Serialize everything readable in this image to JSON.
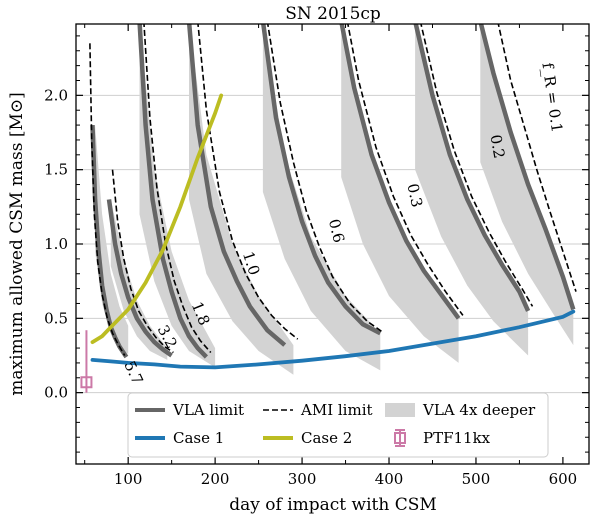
{
  "chart_data": {
    "type": "line",
    "title": "SN 2015cp",
    "xlabel": "day of impact with CSM",
    "ylabel": "maximum allowed CSM mass [M⊙]",
    "xlim": [
      40,
      630
    ],
    "ylim": [
      -0.48,
      2.48
    ],
    "x_ticks": [
      100,
      200,
      300,
      400,
      500,
      600
    ],
    "x_tick_labels": [
      "100",
      "200",
      "300",
      "400",
      "500",
      "600"
    ],
    "y_ticks": [
      0.0,
      0.5,
      1.0,
      1.5,
      2.0
    ],
    "y_tick_labels": [
      "0.0",
      "0.5",
      "1.0",
      "1.5",
      "2.0"
    ],
    "grid": "horizontal",
    "legend_position": "bottom-center",
    "legend": [
      {
        "label": "VLA limit",
        "style": "thick-gray-line",
        "color": "#666666"
      },
      {
        "label": "AMI limit",
        "style": "dashed-black-line",
        "color": "#000000"
      },
      {
        "label": "VLA 4x deeper",
        "style": "gray-patch",
        "color": "#d3d3d3"
      },
      {
        "label": "Case 1",
        "style": "thick-line",
        "color": "#1f77b4"
      },
      {
        "label": "Case 2",
        "style": "thick-line",
        "color": "#bcbd22"
      },
      {
        "label": "PTF11kx",
        "style": "errorbar-square",
        "color": "#cc79a7"
      }
    ],
    "curve_labels": [
      "5.7",
      "3.2",
      "1.8",
      "1.0",
      "0.6",
      "0.3",
      "0.2",
      "f_R = 0.1"
    ],
    "vla_limit": [
      {
        "label": "5.7",
        "x": [
          59,
          62,
          66,
          70,
          75,
          80,
          85,
          90,
          98
        ],
        "y": [
          1.8,
          1.3,
          0.95,
          0.72,
          0.56,
          0.44,
          0.37,
          0.31,
          0.24
        ]
      },
      {
        "label": "3.2",
        "x": [
          78,
          85,
          92,
          100,
          110,
          120,
          130,
          140,
          150
        ],
        "y": [
          1.3,
          1.0,
          0.8,
          0.64,
          0.5,
          0.41,
          0.34,
          0.29,
          0.25
        ]
      },
      {
        "label": "1.8",
        "x": [
          113,
          120,
          128,
          140,
          150,
          160,
          170,
          180,
          190
        ],
        "y": [
          2.5,
          1.8,
          1.3,
          0.9,
          0.68,
          0.5,
          0.38,
          0.3,
          0.24
        ]
      },
      {
        "label": "1.0",
        "x": [
          170,
          180,
          195,
          210,
          225,
          240,
          260,
          280
        ],
        "y": [
          2.5,
          1.8,
          1.25,
          0.95,
          0.75,
          0.58,
          0.42,
          0.32
        ]
      },
      {
        "label": "0.6",
        "x": [
          255,
          270,
          285,
          300,
          315,
          330,
          350,
          370,
          390
        ],
        "y": [
          2.5,
          1.85,
          1.45,
          1.15,
          0.92,
          0.74,
          0.58,
          0.46,
          0.4
        ]
      },
      {
        "label": "0.3",
        "x": [
          345,
          360,
          380,
          400,
          420,
          440,
          460,
          480
        ],
        "y": [
          2.5,
          2.05,
          1.6,
          1.28,
          1.02,
          0.82,
          0.66,
          0.5
        ]
      },
      {
        "label": "0.2",
        "x": [
          430,
          450,
          470,
          490,
          510,
          530,
          550,
          560
        ],
        "y": [
          2.5,
          2.0,
          1.6,
          1.3,
          1.06,
          0.86,
          0.68,
          0.55
        ]
      },
      {
        "label": "0.1",
        "x": [
          505,
          520,
          540,
          560,
          580,
          600,
          612
        ],
        "y": [
          2.5,
          2.15,
          1.75,
          1.4,
          1.1,
          0.78,
          0.56
        ]
      }
    ],
    "ami_limit": [
      {
        "label": "5.7",
        "x": [
          56,
          58,
          61,
          65,
          70,
          76,
          82,
          88,
          96
        ],
        "y": [
          2.35,
          1.7,
          1.2,
          0.88,
          0.66,
          0.5,
          0.4,
          0.33,
          0.25
        ]
      },
      {
        "label": "3.2",
        "x": [
          82,
          88,
          95,
          103,
          112,
          122,
          132,
          142,
          152
        ],
        "y": [
          1.5,
          1.15,
          0.9,
          0.7,
          0.55,
          0.45,
          0.37,
          0.31,
          0.27
        ]
      },
      {
        "label": "1.8",
        "x": [
          118,
          125,
          133,
          143,
          153,
          163,
          173,
          183,
          195
        ],
        "y": [
          2.5,
          1.85,
          1.38,
          1.0,
          0.75,
          0.58,
          0.44,
          0.35,
          0.27
        ]
      },
      {
        "label": "1.0",
        "x": [
          180,
          190,
          205,
          220,
          235,
          250,
          265,
          280,
          295
        ],
        "y": [
          2.5,
          1.9,
          1.35,
          1.02,
          0.8,
          0.64,
          0.52,
          0.43,
          0.36
        ]
      },
      {
        "label": "0.6",
        "x": [
          260,
          275,
          290,
          305,
          320,
          335,
          355,
          375,
          392
        ],
        "y": [
          2.5,
          1.95,
          1.55,
          1.22,
          0.98,
          0.78,
          0.6,
          0.48,
          0.41
        ]
      },
      {
        "label": "0.3",
        "x": [
          352,
          365,
          385,
          405,
          425,
          445,
          465,
          485
        ],
        "y": [
          2.5,
          2.1,
          1.65,
          1.32,
          1.06,
          0.86,
          0.68,
          0.52
        ]
      },
      {
        "label": "0.2",
        "x": [
          436,
          455,
          475,
          495,
          515,
          535,
          553,
          565
        ],
        "y": [
          2.5,
          2.02,
          1.63,
          1.32,
          1.08,
          0.87,
          0.7,
          0.58
        ]
      },
      {
        "label": "0.1",
        "x": [
          525,
          540,
          555,
          570,
          585,
          600,
          615
        ],
        "y": [
          2.5,
          2.1,
          1.8,
          1.5,
          1.22,
          0.95,
          0.68
        ]
      }
    ],
    "vla_4x_deeper": [
      {
        "x": [
          62,
          70,
          80,
          90,
          100
        ],
        "upper": [
          1.8,
          1.2,
          0.8,
          0.58,
          0.45
        ],
        "lower": [
          0.95,
          0.6,
          0.4,
          0.3,
          0.26
        ],
        "xmax": 100
      },
      {
        "x": [
          80,
          95,
          110,
          125,
          145
        ],
        "upper": [
          1.3,
          0.9,
          0.62,
          0.45,
          0.3
        ],
        "lower": [
          0.85,
          0.55,
          0.38,
          0.28,
          0.22
        ],
        "xmax": 145
      },
      {
        "x": [
          113,
          130,
          150,
          170,
          200
        ],
        "upper": [
          2.5,
          1.5,
          0.95,
          0.62,
          0.3
        ],
        "lower": [
          1.2,
          0.75,
          0.45,
          0.28,
          0.17
        ],
        "xmax": 200
      },
      {
        "x": [
          170,
          190,
          220,
          250,
          290
        ],
        "upper": [
          2.5,
          1.6,
          1.0,
          0.65,
          0.32
        ],
        "lower": [
          1.3,
          0.8,
          0.48,
          0.28,
          0.12
        ],
        "xmax": 290
      },
      {
        "x": [
          255,
          280,
          310,
          350,
          390
        ],
        "upper": [
          2.5,
          1.6,
          1.05,
          0.65,
          0.4
        ],
        "lower": [
          1.35,
          0.9,
          0.55,
          0.28,
          0.15
        ],
        "xmax": 390
      },
      {
        "x": [
          345,
          370,
          400,
          440,
          480
        ],
        "upper": [
          2.5,
          1.8,
          1.28,
          0.82,
          0.5
        ],
        "lower": [
          1.45,
          1.0,
          0.65,
          0.38,
          0.2
        ],
        "xmax": 480
      },
      {
        "x": [
          430,
          460,
          490,
          520,
          560
        ],
        "upper": [
          2.5,
          1.8,
          1.3,
          0.95,
          0.55
        ],
        "lower": [
          1.5,
          1.05,
          0.72,
          0.48,
          0.25
        ],
        "xmax": 560
      },
      {
        "x": [
          505,
          530,
          560,
          590,
          612
        ],
        "upper": [
          2.5,
          1.95,
          1.4,
          0.95,
          0.56
        ],
        "lower": [
          1.55,
          1.15,
          0.8,
          0.52,
          0.32
        ],
        "xmax": 612
      }
    ],
    "series": [
      {
        "name": "Case 1",
        "color": "#1f77b4",
        "x": [
          59,
          80,
          100,
          130,
          160,
          200,
          250,
          300,
          350,
          400,
          450,
          500,
          550,
          600,
          612
        ],
        "y": [
          0.22,
          0.21,
          0.2,
          0.19,
          0.175,
          0.17,
          0.19,
          0.215,
          0.245,
          0.28,
          0.33,
          0.38,
          0.44,
          0.51,
          0.545
        ]
      },
      {
        "name": "Case 2",
        "color": "#bcbd22",
        "x": [
          59,
          70,
          80,
          100,
          120,
          140,
          160,
          180,
          200,
          207
        ],
        "y": [
          0.34,
          0.38,
          0.44,
          0.56,
          0.74,
          0.96,
          1.25,
          1.58,
          1.88,
          2.0
        ]
      }
    ],
    "ptf11kx": {
      "name": "PTF11kx",
      "color": "#cc79a7",
      "x": 52,
      "y": 0.07,
      "y_err_low": 0.07,
      "y_err_high": 0.35
    }
  }
}
